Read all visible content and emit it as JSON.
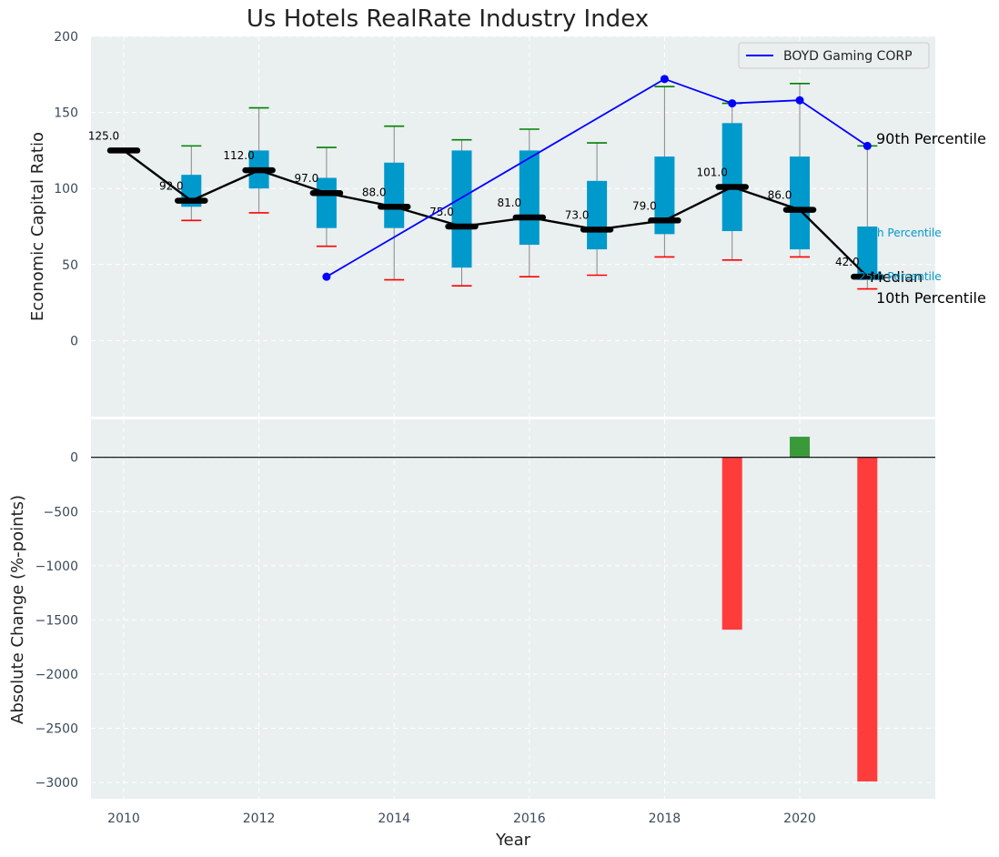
{
  "chart_data": [
    {
      "type": "box",
      "title": "Us Hotels RealRate Industry Index",
      "xlabel": "",
      "ylabel": "Economic Capital Ratio",
      "ylim": [
        -50,
        200
      ],
      "yticks": [
        0,
        50,
        100,
        150,
        200
      ],
      "years": [
        2010,
        2011,
        2012,
        2013,
        2014,
        2015,
        2016,
        2017,
        2018,
        2019,
        2020,
        2021
      ],
      "median": [
        125,
        92,
        112,
        97,
        88,
        75,
        81,
        73,
        79,
        101,
        86,
        42
      ],
      "median_labels": [
        "125.0",
        "92.0",
        "112.0",
        "97.0",
        "88.0",
        "75.0",
        "81.0",
        "73.0",
        "79.0",
        "101.0",
        "86.0",
        "42.0"
      ],
      "q1": [
        125,
        88,
        100,
        74,
        74,
        48,
        63,
        60,
        70,
        72,
        60,
        40
      ],
      "q3": [
        125,
        109,
        125,
        107,
        117,
        125,
        125,
        105,
        121,
        143,
        121,
        75
      ],
      "p10": [
        125,
        79,
        84,
        62,
        40,
        36,
        42,
        43,
        55,
        53,
        55,
        34
      ],
      "p90": [
        125,
        128,
        153,
        127,
        141,
        132,
        139,
        130,
        167,
        156,
        169,
        128
      ],
      "series": [
        {
          "name": "BOYD Gaming CORP",
          "color": "#0000ff",
          "x": [
            2013,
            2018,
            2019,
            2020,
            2021
          ],
          "y": [
            42,
            172,
            156,
            158,
            128
          ]
        }
      ],
      "legend": [
        "BOYD Gaming CORP"
      ],
      "annotations": [
        "90th Percentile",
        "75th Percentile",
        "Median",
        "25th Percentile",
        "10th Percentile"
      ],
      "colors": {
        "box": "#0099cc",
        "median_line": "#000000",
        "p90_cap": "#008000",
        "p10_cap": "#ff0000",
        "background": "#eaeff0"
      }
    },
    {
      "type": "bar",
      "xlabel": "Year",
      "ylabel": "Absolute Change (%-points)",
      "ylim": [
        -3150,
        350
      ],
      "yticks": [
        0,
        -500,
        -1000,
        -1500,
        -2000,
        -2500,
        -3000
      ],
      "xticks": [
        2010,
        2012,
        2014,
        2016,
        2018,
        2020
      ],
      "x": [
        2019,
        2020,
        2021
      ],
      "values": [
        -1590,
        190,
        -2990
      ],
      "colors": {
        "positive": "#3a9a3a",
        "negative": "#ff3c3c"
      }
    }
  ]
}
